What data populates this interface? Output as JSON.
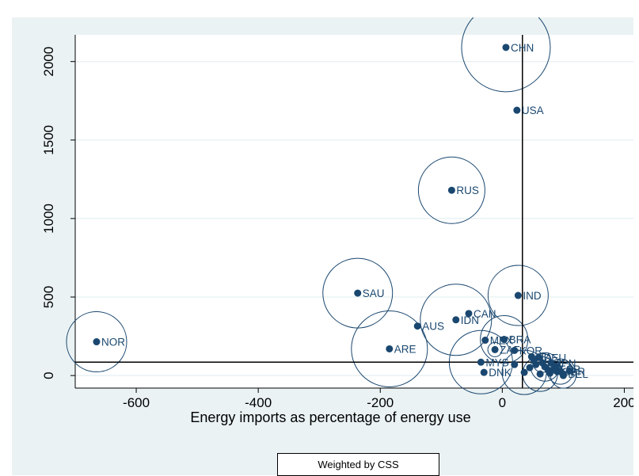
{
  "chart_data": {
    "type": "scatter",
    "xlabel": "Energy imports as percentage of energy use",
    "ylabel": "",
    "xlim": [
      -700,
      215
    ],
    "ylim": [
      -80,
      2170
    ],
    "xticks": [
      -600,
      -400,
      -200,
      0,
      200
    ],
    "yticks": [
      0,
      500,
      1000,
      1500,
      2000
    ],
    "grid": "horizontal",
    "marker_color": "#1a476f",
    "reference_lines": {
      "x": 33,
      "y": 85
    },
    "legend": "Weighted by CSS",
    "points": [
      {
        "label": "CHN",
        "x": 6,
        "y": 2090,
        "r": 56
      },
      {
        "label": "USA",
        "x": 24,
        "y": 1690,
        "r": 0
      },
      {
        "label": "RUS",
        "x": -83,
        "y": 1180,
        "r": 42
      },
      {
        "label": "IND",
        "x": 26,
        "y": 510,
        "r": 38
      },
      {
        "label": "SAU",
        "x": -237,
        "y": 525,
        "r": 44
      },
      {
        "label": "CAN",
        "x": -55,
        "y": 395,
        "r": 0
      },
      {
        "label": "IDN",
        "x": -76,
        "y": 355,
        "r": 45
      },
      {
        "label": "AUS",
        "x": -139,
        "y": 315,
        "r": 0
      },
      {
        "label": "NOR",
        "x": -665,
        "y": 215,
        "r": 38
      },
      {
        "label": "ARE",
        "x": -185,
        "y": 170,
        "r": 48
      },
      {
        "label": "MEX",
        "x": -28,
        "y": 225,
        "r": 0
      },
      {
        "label": "BRA",
        "x": 3,
        "y": 230,
        "r": 30
      },
      {
        "label": "ZAF",
        "x": -12,
        "y": 165,
        "r": 9
      },
      {
        "label": "KOR",
        "x": 20,
        "y": 160,
        "r": 0
      },
      {
        "label": "DEU",
        "x": 60,
        "y": 115,
        "r": 0
      },
      {
        "label": "ITA",
        "x": 48,
        "y": 120,
        "r": 0
      },
      {
        "label": "JPN",
        "x": 80,
        "y": 80,
        "r": 0
      },
      {
        "label": "FRA",
        "x": 55,
        "y": 70,
        "r": 0
      },
      {
        "label": "MYS",
        "x": -35,
        "y": 85,
        "r": 40
      },
      {
        "label": "DNK",
        "x": -30,
        "y": 20,
        "r": 0
      },
      {
        "label": "ESP",
        "x": 85,
        "y": 40,
        "r": 0
      },
      {
        "label": "GBR",
        "x": 90,
        "y": 25,
        "r": 0
      },
      {
        "label": "BEL",
        "x": 100,
        "y": 10,
        "r": 0
      },
      {
        "label": "NLD",
        "x": 75,
        "y": 35,
        "r": 0
      },
      {
        "label": "",
        "x": 20,
        "y": 70,
        "r": 0
      },
      {
        "label": "",
        "x": 36,
        "y": 20,
        "r": 28
      },
      {
        "label": "",
        "x": 45,
        "y": 50,
        "r": 0
      },
      {
        "label": "",
        "x": 62,
        "y": 10,
        "r": 22
      },
      {
        "label": "",
        "x": 70,
        "y": 55,
        "r": 18
      },
      {
        "label": "",
        "x": 78,
        "y": 15,
        "r": 0
      },
      {
        "label": "",
        "x": 95,
        "y": 25,
        "r": 16
      },
      {
        "label": "",
        "x": 100,
        "y": 0,
        "r": 16
      },
      {
        "label": "",
        "x": 110,
        "y": 30,
        "r": 0
      },
      {
        "label": "",
        "x": 88,
        "y": 60,
        "r": 0
      },
      {
        "label": "",
        "x": 52,
        "y": 95,
        "r": 0
      },
      {
        "label": "",
        "x": 66,
        "y": 80,
        "r": 12
      }
    ]
  }
}
